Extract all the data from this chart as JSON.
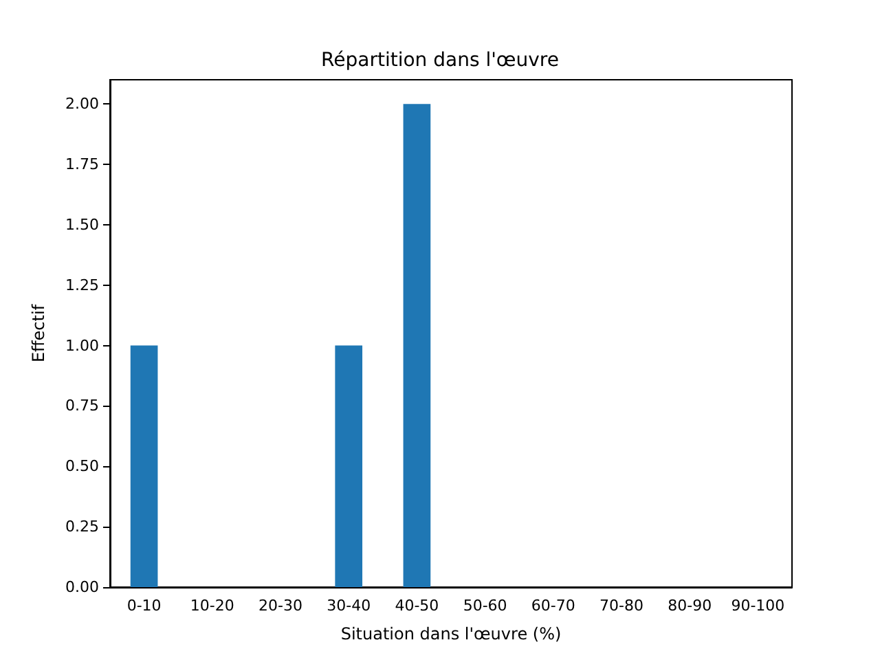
{
  "chart_data": {
    "type": "bar",
    "title": "Répartition dans l'œuvre",
    "xlabel": "Situation dans l'œuvre (%)",
    "ylabel": "Effectif",
    "categories": [
      "0-10",
      "10-20",
      "20-30",
      "30-40",
      "40-50",
      "50-60",
      "60-70",
      "70-80",
      "80-90",
      "90-100"
    ],
    "values": [
      1,
      0,
      0,
      1,
      2,
      0,
      0,
      0,
      0,
      0
    ],
    "color": "#1f77b4",
    "ylim": [
      0,
      2.1
    ],
    "yticks": [
      {
        "value": 0,
        "label": "0.00"
      },
      {
        "value": 0.25,
        "label": "0.25"
      },
      {
        "value": 0.5,
        "label": "0.50"
      },
      {
        "value": 0.75,
        "label": "0.75"
      },
      {
        "value": 1,
        "label": "1.00"
      },
      {
        "value": 1.25,
        "label": "1.25"
      },
      {
        "value": 1.5,
        "label": "1.50"
      },
      {
        "value": 1.75,
        "label": "1.75"
      },
      {
        "value": 2,
        "label": "2.00"
      }
    ],
    "grid": false
  }
}
